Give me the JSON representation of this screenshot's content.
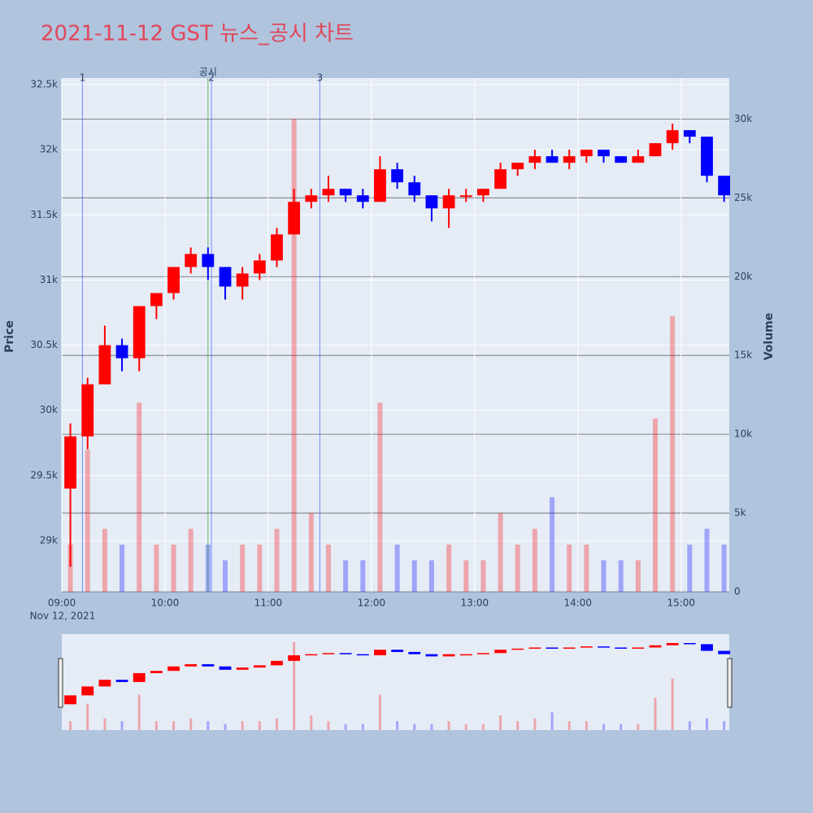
{
  "chart_data": {
    "type": "candlestick",
    "title": "2021-11-12 GST 뉴스_공시 차트",
    "x": [
      "09:00",
      "09:10",
      "09:20",
      "09:30",
      "09:40",
      "09:50",
      "10:00",
      "10:10",
      "10:20",
      "10:30",
      "10:40",
      "10:50",
      "11:00",
      "11:10",
      "11:20",
      "11:30",
      "11:40",
      "11:50",
      "12:00",
      "12:10",
      "12:20",
      "12:30",
      "12:40",
      "12:50",
      "13:00",
      "13:10",
      "13:20",
      "13:30",
      "13:40",
      "13:50",
      "14:00",
      "14:10",
      "14:20",
      "14:30",
      "14:40",
      "14:50",
      "15:00",
      "15:10",
      "15:20"
    ],
    "open": [
      29400,
      29800,
      30200,
      30500,
      30400,
      30800,
      30900,
      31100,
      31200,
      31100,
      30950,
      31050,
      31150,
      31350,
      31600,
      31650,
      31700,
      31650,
      31600,
      31850,
      31750,
      31650,
      31550,
      31650,
      31650,
      31700,
      31850,
      31900,
      31950,
      31900,
      31950,
      32000,
      31950,
      31900,
      31950,
      32050,
      32150,
      32100,
      31800
    ],
    "high": [
      29900,
      30250,
      30650,
      30550,
      30800,
      30900,
      31100,
      31250,
      31250,
      31100,
      31100,
      31200,
      31400,
      31700,
      31700,
      31800,
      31700,
      31700,
      31950,
      31900,
      31800,
      31650,
      31700,
      31700,
      31700,
      31900,
      31900,
      32000,
      32000,
      32000,
      32000,
      32000,
      31950,
      32000,
      32050,
      32200,
      32150,
      32100,
      31800
    ],
    "low": [
      28800,
      29700,
      30200,
      30300,
      30300,
      30700,
      30850,
      31050,
      31000,
      30850,
      30850,
      31000,
      31100,
      31350,
      31550,
      31600,
      31600,
      31550,
      31600,
      31700,
      31600,
      31450,
      31400,
      31600,
      31600,
      31700,
      31800,
      31850,
      31900,
      31850,
      31900,
      31900,
      31900,
      31900,
      31950,
      32000,
      32050,
      31750,
      31600
    ],
    "close": [
      29800,
      30200,
      30500,
      30400,
      30800,
      30900,
      31100,
      31200,
      31100,
      30950,
      31050,
      31150,
      31350,
      31600,
      31650,
      31700,
      31650,
      31600,
      31850,
      31750,
      31650,
      31550,
      31650,
      31650,
      31700,
      31850,
      31900,
      31950,
      31900,
      31950,
      32000,
      31950,
      31900,
      31950,
      32050,
      32150,
      32100,
      31800,
      31650
    ],
    "volume": [
      3000,
      9000,
      4000,
      3000,
      12000,
      3000,
      3000,
      4000,
      3000,
      2000,
      3000,
      3000,
      4000,
      30000,
      5000,
      3000,
      2000,
      2000,
      12000,
      3000,
      2000,
      2000,
      3000,
      2000,
      2000,
      5000,
      3000,
      4000,
      6000,
      3000,
      3000,
      2000,
      2000,
      2000,
      11000,
      17500,
      3000,
      4000,
      3000
    ],
    "xlim": [
      "09:00",
      "15:28"
    ],
    "xticks": [
      "09:00",
      "10:00",
      "11:00",
      "12:00",
      "13:00",
      "14:00",
      "15:00"
    ],
    "x_sub_label": "Nov 12, 2021",
    "ylim": [
      28607,
      32550
    ],
    "yticks": [
      {
        "value": 29000,
        "label": "29k"
      },
      {
        "value": 29500,
        "label": "29.5k"
      },
      {
        "value": 30000,
        "label": "30k"
      },
      {
        "value": 30500,
        "label": "30.5k"
      },
      {
        "value": 31000,
        "label": "31k"
      },
      {
        "value": 31500,
        "label": "31.5k"
      },
      {
        "value": 32000,
        "label": "32k"
      },
      {
        "value": 32500,
        "label": "32.5k"
      }
    ],
    "y2lim": [
      0,
      32600
    ],
    "y2ticks": [
      0,
      {
        "value": 5000,
        "label": "5k"
      },
      {
        "value": 10000,
        "label": "10k"
      },
      {
        "value": 15000,
        "label": "15k"
      },
      {
        "value": 20000,
        "label": "20k"
      },
      {
        "value": 25000,
        "label": "25k"
      },
      {
        "value": 30000,
        "label": "30k"
      }
    ],
    "y_label": "Price",
    "y2_label": "Volume",
    "up_color": "#ff0000",
    "down_color": "#0000ff",
    "annotations": [
      {
        "x": "09:12",
        "label": "1",
        "color": "#4060ff"
      },
      {
        "x": "10:25",
        "label": "공시",
        "color": "#2ca02c"
      },
      {
        "x": "10:27",
        "label": "2",
        "color": "#4060ff"
      },
      {
        "x": "11:30",
        "label": "3",
        "color": "#4060ff"
      }
    ],
    "rangeslider": true
  }
}
